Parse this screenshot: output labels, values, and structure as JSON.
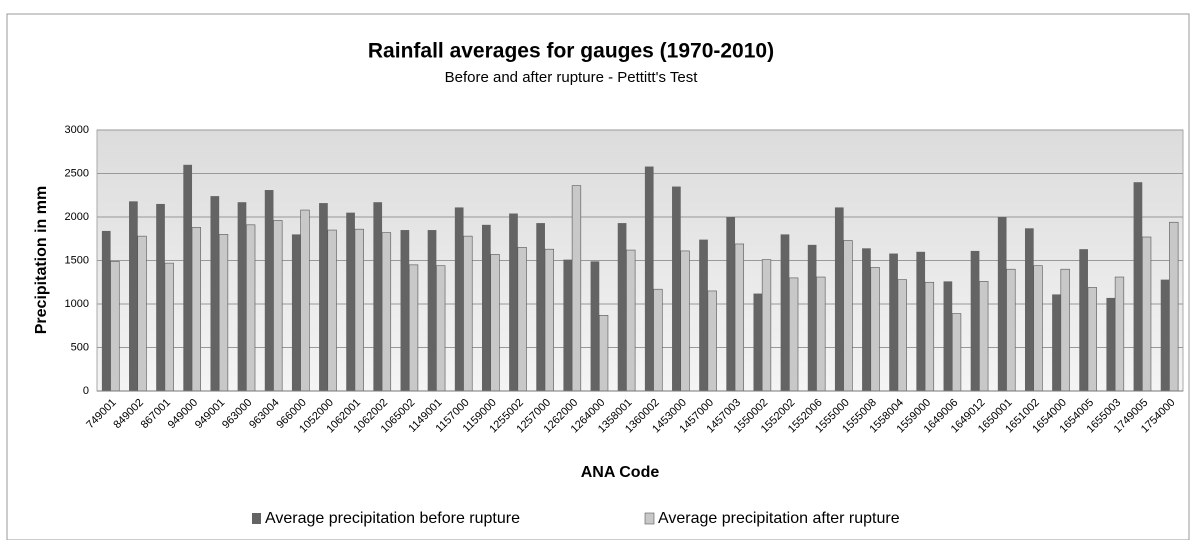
{
  "chart_data": {
    "type": "bar",
    "title": "Rainfall averages for gauges (1970-2010)",
    "subtitle": "Before and after rupture - Pettitt's Test",
    "x_label": "ANA Code",
    "y_label": "Precipitation in mm",
    "categories": [
      "749001",
      "849002",
      "867001",
      "949000",
      "949001",
      "963000",
      "963004",
      "966000",
      "1052000",
      "1062001",
      "1062002",
      "1065002",
      "1149001",
      "1157000",
      "1159000",
      "1255002",
      "1257000",
      "1262000",
      "1264000",
      "1358001",
      "1360002",
      "1453000",
      "1457000",
      "1457003",
      "1550002",
      "1552002",
      "1552006",
      "1555000",
      "1555008",
      "1558004",
      "1559000",
      "1649006",
      "1649012",
      "1650001",
      "1651002",
      "1654000",
      "1654005",
      "1655003",
      "1749005",
      "1754000"
    ],
    "series": [
      {
        "name": "Average precipitation before rupture",
        "color": "#646464",
        "values": [
          1840,
          2180,
          2150,
          2600,
          2240,
          2170,
          2310,
          1800,
          2160,
          2050,
          2170,
          1850,
          1850,
          2110,
          1910,
          2040,
          1930,
          1510,
          1490,
          1930,
          2580,
          2350,
          1740,
          2000,
          1120,
          1800,
          1680,
          2110,
          1640,
          1580,
          1600,
          1260,
          1610,
          2000,
          1870,
          1110,
          1630,
          1070,
          2400,
          1280
        ]
      },
      {
        "name": "Average precipitation after rupture",
        "color": "#c8c8c8",
        "values": [
          1490,
          1780,
          1470,
          1880,
          1800,
          1910,
          1960,
          2080,
          1850,
          1860,
          1820,
          1450,
          1440,
          1780,
          1570,
          1650,
          1630,
          2360,
          870,
          1620,
          1170,
          1610,
          1150,
          1690,
          1510,
          1300,
          1310,
          1730,
          1420,
          1280,
          1250,
          890,
          1260,
          1400,
          1440,
          1400,
          1190,
          1310,
          1770,
          1940
        ]
      }
    ],
    "ylim": [
      0,
      3000
    ],
    "yticks": [
      0,
      500,
      1000,
      1500,
      2000,
      2500,
      3000
    ],
    "grid": true,
    "legend": "bottom"
  }
}
